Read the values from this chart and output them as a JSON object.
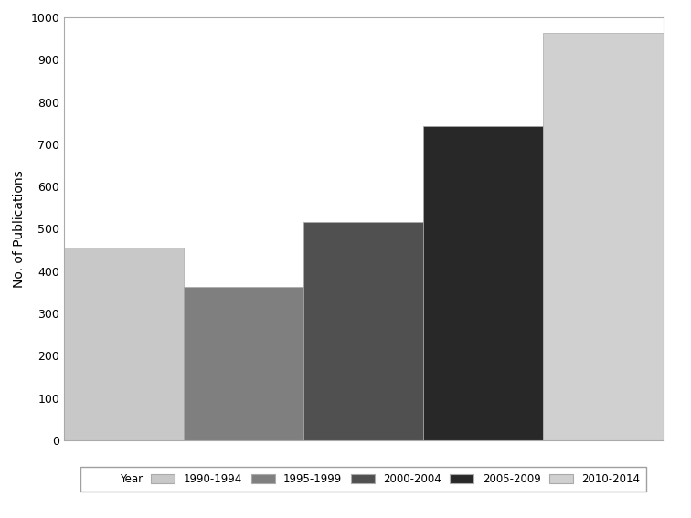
{
  "categories": [
    "1990-1994",
    "1995-1999",
    "2000-2004",
    "2005-2009",
    "2010-2014"
  ],
  "values": [
    455,
    362,
    515,
    743,
    963
  ],
  "bar_colors": [
    "#c8c8c8",
    "#7f7f7f",
    "#505050",
    "#282828",
    "#d0d0d0"
  ],
  "ylabel": "No. of Publications",
  "ylim": [
    0,
    1000
  ],
  "yticks": [
    0,
    100,
    200,
    300,
    400,
    500,
    600,
    700,
    800,
    900,
    1000
  ],
  "legend_label": "Year",
  "background_color": "#ffffff",
  "bar_edge_color": "#aaaaaa",
  "bar_width": 1.0,
  "legend_colors": [
    "#c8c8c8",
    "#7f7f7f",
    "#505050",
    "#282828",
    "#d0d0d0"
  ],
  "frame_color": "#aaaaaa"
}
